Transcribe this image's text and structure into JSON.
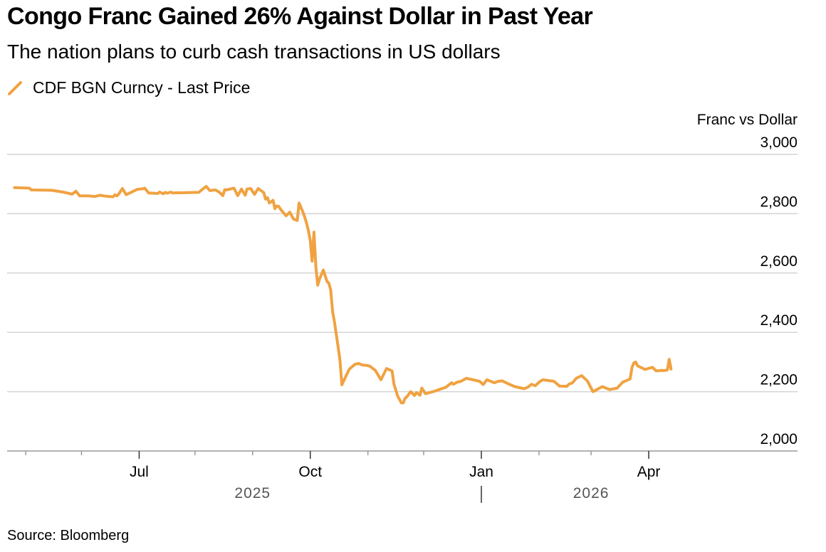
{
  "header": {
    "title": "Congo Franc Gained 26% Against Dollar in Past Year",
    "subtitle": "The nation plans to curb cash transactions in US dollars"
  },
  "legend": {
    "label": "CDF BGN Curncy - Last Price",
    "icon": "diagonal-line-icon"
  },
  "footer": {
    "source": "Source: Bloomberg"
  },
  "colors": {
    "series": "#F0A241",
    "grid": "#d4d4d4",
    "axis": "#9a9a9a",
    "text": "#000000",
    "year_text": "#555555"
  },
  "chart_data": {
    "type": "line",
    "title": "Congo Franc Gained 26% Against Dollar in Past Year",
    "subtitle": "The nation plans to curb cash transactions in US dollars",
    "ylabel": "Franc vs Dollar",
    "xlabel": "",
    "ylim": [
      2000,
      3000
    ],
    "y_ticks": [
      2000,
      2200,
      2400,
      2600,
      2800,
      3000
    ],
    "y_tick_labels": [
      "2,000",
      "2,200",
      "2,400",
      "2,600",
      "2,800",
      "3,000"
    ],
    "x_domain": [
      0,
      425
    ],
    "x_unit": "days since 2025-04-21",
    "x_major_ticks": [
      {
        "x": 71,
        "label": "Jul"
      },
      {
        "x": 163,
        "label": "Oct"
      },
      {
        "x": 255,
        "label": "Jan"
      },
      {
        "x": 345,
        "label": "Apr"
      }
    ],
    "x_minor_ticks": [
      10,
      40,
      101,
      132,
      194,
      224,
      286,
      314
    ],
    "year_labels": [
      {
        "x": 132,
        "label": "2025"
      },
      {
        "x": 314,
        "label": "2026"
      }
    ],
    "year_divider_x": 255,
    "grid": true,
    "legend_position": "top-left",
    "series": [
      {
        "name": "CDF BGN Curncy - Last Price",
        "x": [
          4,
          12,
          13,
          24,
          30,
          35,
          37,
          39,
          44,
          47,
          50,
          53,
          55,
          57,
          58,
          59,
          60,
          62,
          64,
          70,
          73,
          74,
          76,
          81,
          82,
          84,
          85,
          86,
          88,
          89,
          103,
          107,
          109,
          112,
          114,
          116,
          117,
          118,
          122,
          124,
          126,
          128,
          129,
          131,
          133,
          135,
          138,
          139,
          140,
          141,
          143,
          144,
          145,
          146,
          147,
          150,
          152,
          154,
          156,
          157,
          159,
          160,
          161,
          162,
          163,
          164,
          165,
          166,
          167,
          168,
          170,
          172,
          173,
          174,
          175,
          176,
          178,
          179,
          180,
          182,
          184,
          187,
          189,
          191,
          193,
          195,
          198,
          201,
          204,
          207,
          208,
          210,
          212,
          213,
          214,
          215,
          217,
          219,
          220,
          222,
          223,
          225,
          229,
          236,
          239,
          240,
          242,
          244,
          247,
          254,
          256,
          258,
          262,
          264,
          265,
          266,
          270,
          273,
          278,
          280,
          282,
          284,
          286,
          288,
          294,
          297,
          301,
          302,
          304,
          306,
          309,
          312,
          315,
          320,
          324,
          328,
          331,
          335,
          336,
          337,
          338,
          339,
          343,
          347,
          349,
          351,
          352,
          353,
          355,
          356,
          357
        ],
        "values": [
          2888,
          2886,
          2880,
          2879,
          2873,
          2866,
          2876,
          2860,
          2860,
          2858,
          2862,
          2859,
          2858,
          2857,
          2864,
          2860,
          2866,
          2885,
          2864,
          2882,
          2884,
          2886,
          2870,
          2868,
          2873,
          2867,
          2872,
          2869,
          2873,
          2870,
          2872,
          2892,
          2878,
          2880,
          2873,
          2861,
          2881,
          2880,
          2886,
          2861,
          2883,
          2862,
          2883,
          2885,
          2865,
          2885,
          2871,
          2849,
          2854,
          2836,
          2845,
          2817,
          2826,
          2825,
          2815,
          2793,
          2805,
          2782,
          2777,
          2836,
          2806,
          2789,
          2768,
          2743,
          2710,
          2640,
          2738,
          2620,
          2559,
          2580,
          2610,
          2572,
          2566,
          2543,
          2470,
          2435,
          2350,
          2305,
          2223,
          2250,
          2276,
          2292,
          2295,
          2290,
          2289,
          2286,
          2272,
          2240,
          2278,
          2270,
          2226,
          2185,
          2162,
          2162,
          2178,
          2183,
          2200,
          2187,
          2197,
          2188,
          2212,
          2193,
          2200,
          2215,
          2230,
          2225,
          2232,
          2235,
          2245,
          2235,
          2224,
          2240,
          2230,
          2235,
          2235,
          2237,
          2225,
          2217,
          2210,
          2215,
          2225,
          2220,
          2232,
          2240,
          2235,
          2219,
          2218,
          2225,
          2230,
          2245,
          2254,
          2236,
          2200,
          2217,
          2207,
          2212,
          2232,
          2243,
          2282,
          2297,
          2300,
          2287,
          2275,
          2282,
          2270,
          2271,
          2272,
          2271,
          2273,
          2309,
          2276
        ]
      }
    ]
  }
}
